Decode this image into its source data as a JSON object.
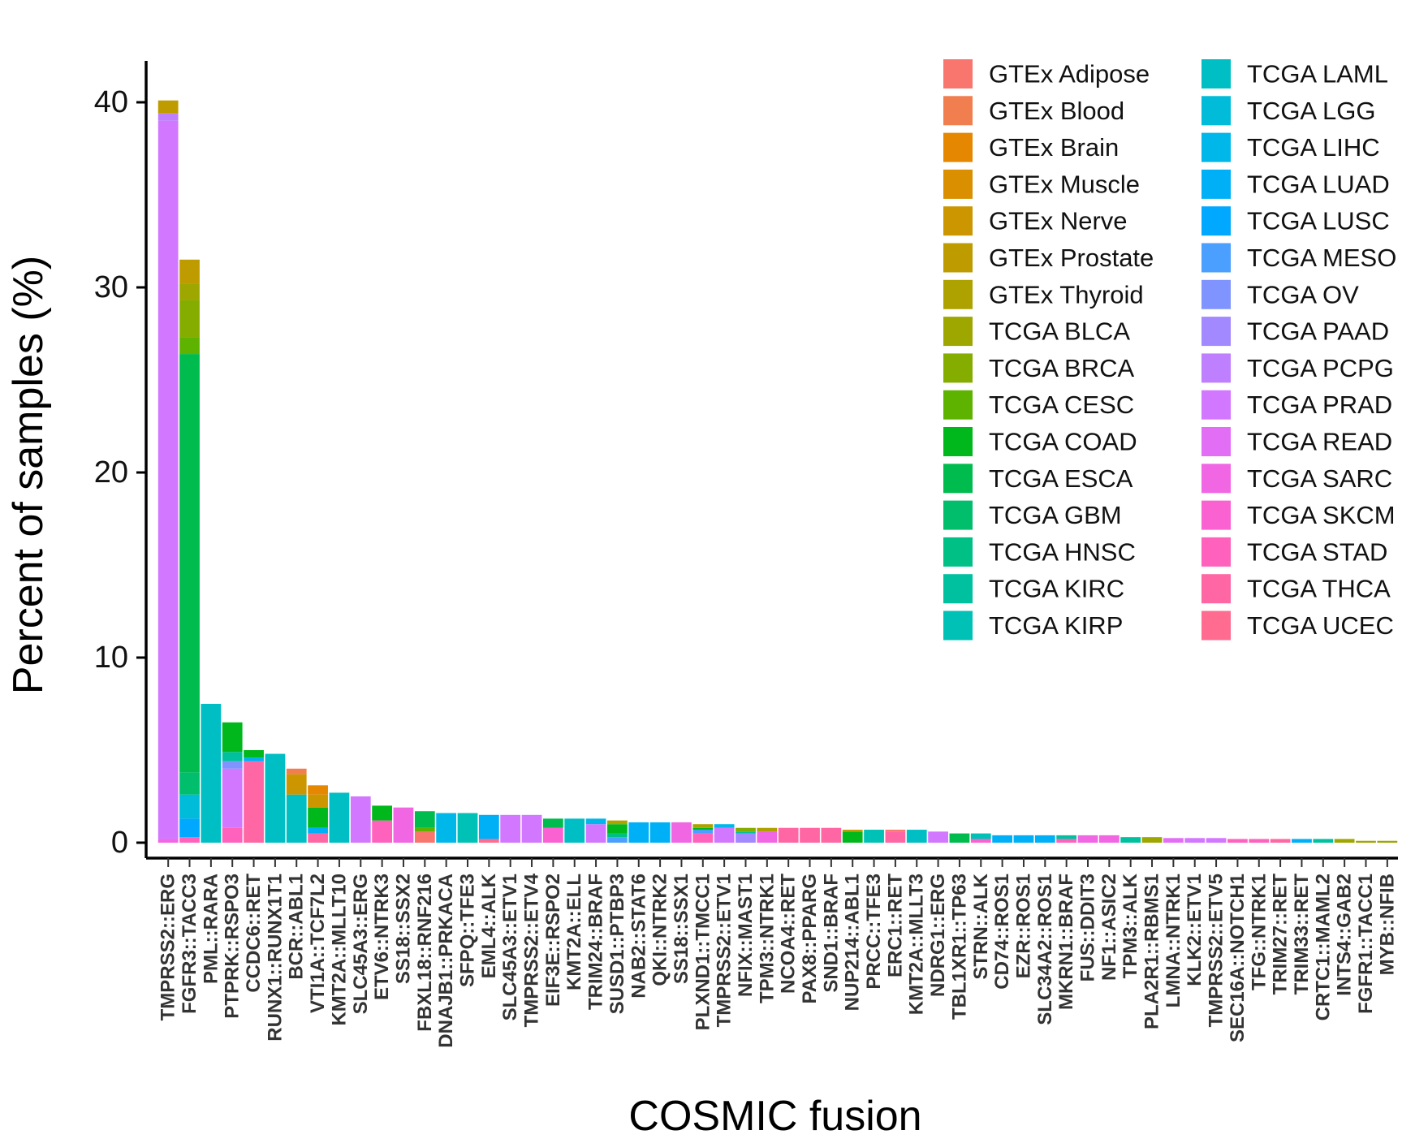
{
  "chart_data": {
    "type": "bar",
    "stacked": true,
    "title": "",
    "xlabel": "COSMIC fusion",
    "ylabel": "Percent of samples (%)",
    "ylim": [
      0,
      42
    ],
    "yticks": [
      0,
      10,
      20,
      30,
      40
    ],
    "grid": false,
    "legend_position": "top-right",
    "legend": [
      {
        "name": "GTEx Adipose",
        "color": "#F8766D"
      },
      {
        "name": "GTEx Blood",
        "color": "#F07E4E"
      },
      {
        "name": "GTEx Brain",
        "color": "#E58700"
      },
      {
        "name": "GTEx Muscle",
        "color": "#D98F00"
      },
      {
        "name": "GTEx Nerve",
        "color": "#CC9600"
      },
      {
        "name": "GTEx Prostate",
        "color": "#BE9C00"
      },
      {
        "name": "GTEx Thyroid",
        "color": "#AEA200"
      },
      {
        "name": "TCGA BLCA",
        "color": "#9DA700"
      },
      {
        "name": "TCGA BRCA",
        "color": "#85AD00"
      },
      {
        "name": "TCGA CESC",
        "color": "#5EB300"
      },
      {
        "name": "TCGA COAD",
        "color": "#00B81B"
      },
      {
        "name": "TCGA ESCA",
        "color": "#00BB4E"
      },
      {
        "name": "TCGA GBM",
        "color": "#00BE6C"
      },
      {
        "name": "TCGA HNSC",
        "color": "#00C086"
      },
      {
        "name": "TCGA KIRC",
        "color": "#00C19F"
      },
      {
        "name": "TCGA KIRP",
        "color": "#00C1B6"
      },
      {
        "name": "TCGA LAML",
        "color": "#00BFC4"
      },
      {
        "name": "TCGA LGG",
        "color": "#00BCD8"
      },
      {
        "name": "TCGA LIHC",
        "color": "#00B7E9"
      },
      {
        "name": "TCGA LUAD",
        "color": "#00B0F6"
      },
      {
        "name": "TCGA LUSC",
        "color": "#00A9FF"
      },
      {
        "name": "TCGA MESO",
        "color": "#4A9FFF"
      },
      {
        "name": "TCGA OV",
        "color": "#8094FF"
      },
      {
        "name": "TCGA PAAD",
        "color": "#A389FF"
      },
      {
        "name": "TCGA PCPG",
        "color": "#BE80FF"
      },
      {
        "name": "TCGA PRAD",
        "color": "#D277FF"
      },
      {
        "name": "TCGA READ",
        "color": "#E36EF6"
      },
      {
        "name": "TCGA SARC",
        "color": "#F066E3"
      },
      {
        "name": "TCGA SKCM",
        "color": "#FA62D2"
      },
      {
        "name": "TCGA STAD",
        "color": "#FF62BC"
      },
      {
        "name": "TCGA THCA",
        "color": "#FF67A4"
      },
      {
        "name": "TCGA UCEC",
        "color": "#FF6C8F"
      }
    ],
    "categories": [
      {
        "name": "TMPRSS2::ERG",
        "segments": [
          [
            "TCGA SARC",
            0.2
          ],
          [
            "TCGA PRAD",
            38.8
          ],
          [
            "TCGA PCPG",
            0.4
          ],
          [
            "GTEx Prostate",
            0.7
          ]
        ]
      },
      {
        "name": "FGFR3::TACC3",
        "segments": [
          [
            "TCGA STAD",
            0.3
          ],
          [
            "TCGA LUSC",
            1.0
          ],
          [
            "TCGA LGG",
            1.3
          ],
          [
            "TCGA GBM",
            1.2
          ],
          [
            "TCGA ESCA",
            22.6
          ],
          [
            "TCGA CESC",
            0.9
          ],
          [
            "TCGA BRCA",
            2.0
          ],
          [
            "TCGA BLCA",
            0.9
          ],
          [
            "GTEx Prostate",
            1.3
          ]
        ]
      },
      {
        "name": "PML::RARA",
        "segments": [
          [
            "TCGA LAML",
            7.5
          ]
        ]
      },
      {
        "name": "PTPRK::RSPO3",
        "segments": [
          [
            "TCGA STAD",
            0.8
          ],
          [
            "TCGA PRAD",
            3.2
          ],
          [
            "TCGA OV",
            0.4
          ],
          [
            "TCGA KIRC",
            0.5
          ],
          [
            "TCGA COAD",
            1.6
          ]
        ]
      },
      {
        "name": "CCDC6::RET",
        "segments": [
          [
            "TCGA THCA",
            4.4
          ],
          [
            "TCGA LUAD",
            0.2
          ],
          [
            "TCGA COAD",
            0.4
          ]
        ]
      },
      {
        "name": "RUNX1::RUNX1T1",
        "segments": [
          [
            "TCGA LAML",
            4.8
          ]
        ]
      },
      {
        "name": "BCR::ABL1",
        "segments": [
          [
            "TCGA LAML",
            2.6
          ],
          [
            "GTEx Nerve",
            1.1
          ],
          [
            "GTEx Blood",
            0.3
          ]
        ]
      },
      {
        "name": "VTI1A::TCF7L2",
        "segments": [
          [
            "TCGA THCA",
            0.5
          ],
          [
            "TCGA LUAD",
            0.3
          ],
          [
            "TCGA COAD",
            1.1
          ],
          [
            "GTEx Nerve",
            0.7
          ],
          [
            "GTEx Brain",
            0.5
          ]
        ]
      },
      {
        "name": "KMT2A::MLLT10",
        "segments": [
          [
            "TCGA LAML",
            2.7
          ]
        ]
      },
      {
        "name": "SLC45A3::ERG",
        "segments": [
          [
            "TCGA PRAD",
            2.5
          ]
        ]
      },
      {
        "name": "ETV6::NTRK3",
        "segments": [
          [
            "TCGA STAD",
            1.2
          ],
          [
            "TCGA COAD",
            0.8
          ]
        ]
      },
      {
        "name": "SS18::SSX2",
        "segments": [
          [
            "TCGA SARC",
            1.9
          ]
        ]
      },
      {
        "name": "FBXL18::RNF216",
        "segments": [
          [
            "GTEx Adipose",
            0.6
          ],
          [
            "TCGA CESC",
            0.2
          ],
          [
            "TCGA ESCA",
            0.9
          ]
        ]
      },
      {
        "name": "DNAJB1::PRKACA",
        "segments": [
          [
            "TCGA LIHC",
            1.6
          ]
        ]
      },
      {
        "name": "SFPQ::TFE3",
        "segments": [
          [
            "TCGA KIRP",
            1.6
          ]
        ]
      },
      {
        "name": "EML4::ALK",
        "segments": [
          [
            "TCGA UCEC",
            0.2
          ],
          [
            "TCGA LUAD",
            1.3
          ]
        ]
      },
      {
        "name": "SLC45A3::ETV1",
        "segments": [
          [
            "TCGA PRAD",
            1.5
          ]
        ]
      },
      {
        "name": "TMPRSS2::ETV4",
        "segments": [
          [
            "TCGA PRAD",
            1.5
          ]
        ]
      },
      {
        "name": "EIF3E::RSPO2",
        "segments": [
          [
            "TCGA SKCM",
            0.8
          ],
          [
            "TCGA ESCA",
            0.5
          ]
        ]
      },
      {
        "name": "KMT2A::ELL",
        "segments": [
          [
            "TCGA LAML",
            1.3
          ]
        ]
      },
      {
        "name": "TRIM24::BRAF",
        "segments": [
          [
            "TCGA PRAD",
            1.0
          ],
          [
            "TCGA LIHC",
            0.3
          ]
        ]
      },
      {
        "name": "SUSD1::PTBP3",
        "segments": [
          [
            "TCGA MESO",
            0.3
          ],
          [
            "TCGA HNSC",
            0.2
          ],
          [
            "TCGA COAD",
            0.5
          ],
          [
            "GTEx Thyroid",
            0.2
          ]
        ]
      },
      {
        "name": "NAB2::STAT6",
        "segments": [
          [
            "TCGA LUAD",
            1.1
          ]
        ]
      },
      {
        "name": "QKI::NTRK2",
        "segments": [
          [
            "TCGA LUAD",
            1.1
          ]
        ]
      },
      {
        "name": "SS18::SSX1",
        "segments": [
          [
            "TCGA SARC",
            1.1
          ]
        ]
      },
      {
        "name": "PLXND1::TMCC1",
        "segments": [
          [
            "TCGA STAD",
            0.5
          ],
          [
            "TCGA MESO",
            0.2
          ],
          [
            "TCGA COAD",
            0.1
          ],
          [
            "GTEx Thyroid",
            0.2
          ]
        ]
      },
      {
        "name": "TMPRSS2::ETV1",
        "segments": [
          [
            "TCGA PRAD",
            0.8
          ],
          [
            "TCGA LIHC",
            0.2
          ]
        ]
      },
      {
        "name": "NFIX::MAST1",
        "segments": [
          [
            "TCGA PAAD",
            0.5
          ],
          [
            "TCGA KIRC",
            0.1
          ],
          [
            "TCGA BRCA",
            0.2
          ]
        ]
      },
      {
        "name": "TPM3::NTRK1",
        "segments": [
          [
            "TCGA SARC",
            0.6
          ],
          [
            "GTEx Thyroid",
            0.2
          ]
        ]
      },
      {
        "name": "NCOA4::RET",
        "segments": [
          [
            "TCGA THCA",
            0.8
          ]
        ]
      },
      {
        "name": "PAX8::PPARG",
        "segments": [
          [
            "TCGA THCA",
            0.8
          ]
        ]
      },
      {
        "name": "SND1::BRAF",
        "segments": [
          [
            "TCGA THCA",
            0.8
          ]
        ]
      },
      {
        "name": "NUP214::ABL1",
        "segments": [
          [
            "TCGA COAD",
            0.6
          ],
          [
            "GTEx Prostate",
            0.1
          ]
        ]
      },
      {
        "name": "PRCC::TFE3",
        "segments": [
          [
            "TCGA KIRP",
            0.7
          ]
        ]
      },
      {
        "name": "ERC1::RET",
        "segments": [
          [
            "TCGA THCA",
            0.6
          ],
          [
            "GTEx Adipose",
            0.1
          ]
        ]
      },
      {
        "name": "KMT2A::MLLT3",
        "segments": [
          [
            "TCGA LAML",
            0.7
          ]
        ]
      },
      {
        "name": "NDRG1::ERG",
        "segments": [
          [
            "TCGA PRAD",
            0.6
          ]
        ]
      },
      {
        "name": "TBL1XR1::TP63",
        "segments": [
          [
            "TCGA ESCA",
            0.5
          ]
        ]
      },
      {
        "name": "STRN::ALK",
        "segments": [
          [
            "TCGA SKCM",
            0.2
          ],
          [
            "TCGA KIRP",
            0.3
          ]
        ]
      },
      {
        "name": "CD74::ROS1",
        "segments": [
          [
            "TCGA LUAD",
            0.4
          ]
        ]
      },
      {
        "name": "EZR::ROS1",
        "segments": [
          [
            "TCGA LUAD",
            0.4
          ]
        ]
      },
      {
        "name": "SLC34A2::ROS1",
        "segments": [
          [
            "TCGA LUAD",
            0.4
          ]
        ]
      },
      {
        "name": "MKRN1::BRAF",
        "segments": [
          [
            "TCGA STAD",
            0.2
          ],
          [
            "TCGA KIRC",
            0.2
          ]
        ]
      },
      {
        "name": "FUS::DDIT3",
        "segments": [
          [
            "TCGA SARC",
            0.4
          ]
        ]
      },
      {
        "name": "NF1::ASIC2",
        "segments": [
          [
            "TCGA SARC",
            0.4
          ]
        ]
      },
      {
        "name": "TPM3::ALK",
        "segments": [
          [
            "TCGA KIRC",
            0.3
          ]
        ]
      },
      {
        "name": "PLA2R1::RBMS1",
        "segments": [
          [
            "TCGA BLCA",
            0.3
          ]
        ]
      },
      {
        "name": "LMNA::NTRK1",
        "segments": [
          [
            "TCGA READ",
            0.25
          ]
        ]
      },
      {
        "name": "KLK2::ETV1",
        "segments": [
          [
            "TCGA PRAD",
            0.25
          ]
        ]
      },
      {
        "name": "TMPRSS2::ETV5",
        "segments": [
          [
            "TCGA PRAD",
            0.25
          ]
        ]
      },
      {
        "name": "SEC16A::NOTCH1",
        "segments": [
          [
            "TCGA STAD",
            0.2
          ]
        ]
      },
      {
        "name": "TFG::NTRK1",
        "segments": [
          [
            "TCGA STAD",
            0.2
          ]
        ]
      },
      {
        "name": "TRIM27::RET",
        "segments": [
          [
            "TCGA THCA",
            0.2
          ]
        ]
      },
      {
        "name": "TRIM33::RET",
        "segments": [
          [
            "TCGA LUAD",
            0.2
          ]
        ]
      },
      {
        "name": "CRTC1::MAML2",
        "segments": [
          [
            "TCGA KIRC",
            0.2
          ]
        ]
      },
      {
        "name": "INTS4::GAB2",
        "segments": [
          [
            "TCGA BLCA",
            0.2
          ]
        ]
      },
      {
        "name": "FGFR1::TACC1",
        "segments": [
          [
            "TCGA BLCA",
            0.1
          ]
        ]
      },
      {
        "name": "MYB::NFIB",
        "segments": [
          [
            "TCGA BLCA",
            0.1
          ]
        ]
      }
    ]
  }
}
